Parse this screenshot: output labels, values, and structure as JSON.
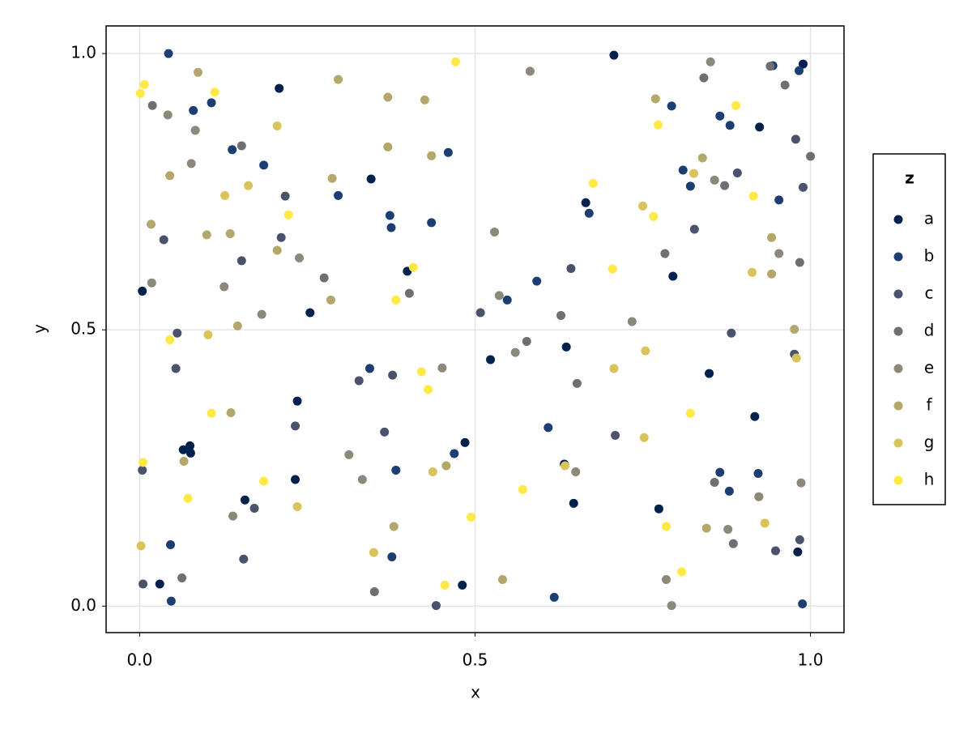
{
  "chart_data": {
    "type": "scatter",
    "x_label": "x",
    "y_label": "y",
    "legend_title": "z",
    "legend": "right",
    "grid": true,
    "xlim": [
      -0.05,
      1.05
    ],
    "ylim": [
      -0.048,
      1.05
    ],
    "xticks": [
      {
        "value": 0,
        "label": "0.0"
      },
      {
        "value": 0.5,
        "label": "0.5"
      },
      {
        "value": 1,
        "label": "1.0"
      }
    ],
    "yticks": [
      {
        "value": 0,
        "label": "0.0"
      },
      {
        "value": 0.5,
        "label": "0.5"
      },
      {
        "value": 1,
        "label": "1.0"
      }
    ],
    "series": [
      {
        "name": "a",
        "color": "#00204d",
        "x": [
          0.707,
          0.989,
          0.208,
          0.924,
          0.345,
          0.665,
          0.004,
          0.399,
          0.795,
          0.254,
          0.523,
          0.636,
          0.849,
          0.235,
          0.917,
          0.485,
          0.065,
          0.075,
          0.076,
          0.232,
          0.157,
          0.647,
          0.774,
          0.981,
          0.03,
          0.481,
          0.633
        ],
        "y": [
          0.997,
          0.981,
          0.937,
          0.867,
          0.773,
          0.73,
          0.57,
          0.606,
          0.597,
          0.531,
          0.446,
          0.469,
          0.421,
          0.371,
          0.343,
          0.296,
          0.283,
          0.29,
          0.277,
          0.229,
          0.192,
          0.186,
          0.176,
          0.098,
          0.04,
          0.038,
          0.257
        ]
      },
      {
        "name": "b",
        "color": "#1c3e73",
        "x": [
          0.043,
          0.944,
          0.983,
          0.08,
          0.107,
          0.793,
          0.865,
          0.88,
          0.138,
          0.46,
          0.185,
          0.296,
          0.81,
          0.821,
          0.953,
          0.67,
          0.373,
          0.375,
          0.435,
          0.592,
          0.548,
          0.343,
          0.609,
          0.469,
          0.382,
          0.865,
          0.922,
          0.879,
          0.046,
          0.376,
          0.047,
          0.618,
          0.988
        ],
        "y": [
          1.0,
          0.978,
          0.969,
          0.897,
          0.911,
          0.905,
          0.887,
          0.87,
          0.826,
          0.821,
          0.798,
          0.743,
          0.789,
          0.76,
          0.735,
          0.711,
          0.707,
          0.685,
          0.694,
          0.588,
          0.554,
          0.43,
          0.323,
          0.276,
          0.246,
          0.242,
          0.24,
          0.208,
          0.111,
          0.089,
          0.009,
          0.016,
          0.004
        ]
      },
      {
        "name": "c",
        "color": "#4b526b",
        "x": [
          0.978,
          0.989,
          0.217,
          0.036,
          0.211,
          0.152,
          0.827,
          0.891,
          0.508,
          0.643,
          0.056,
          0.882,
          0.976,
          0.054,
          0.327,
          0.377,
          0.232,
          0.365,
          0.709,
          0.004,
          0.171,
          0.155,
          0.005,
          0.442,
          0.948,
          0.984
        ],
        "y": [
          0.845,
          0.758,
          0.742,
          0.663,
          0.667,
          0.625,
          0.682,
          0.784,
          0.531,
          0.611,
          0.494,
          0.494,
          0.456,
          0.43,
          0.408,
          0.418,
          0.326,
          0.315,
          0.309,
          0.246,
          0.177,
          0.085,
          0.04,
          0.001,
          0.1,
          0.12
        ]
      },
      {
        "name": "d",
        "color": "#6f6f72",
        "x": [
          0.94,
          0.841,
          0.962,
          0.019,
          0.152,
          1.0,
          0.872,
          0.783,
          0.984,
          0.275,
          0.402,
          0.577,
          0.628,
          0.652,
          0.857,
          0.885,
          0.063,
          0.35
        ],
        "y": [
          0.977,
          0.956,
          0.943,
          0.906,
          0.833,
          0.814,
          0.761,
          0.638,
          0.622,
          0.594,
          0.566,
          0.479,
          0.526,
          0.403,
          0.224,
          0.113,
          0.051,
          0.026
        ]
      },
      {
        "name": "e",
        "color": "#8e887b",
        "x": [
          0.042,
          0.083,
          0.077,
          0.857,
          0.018,
          0.126,
          0.238,
          0.182,
          0.529,
          0.536,
          0.56,
          0.734,
          0.451,
          0.953,
          0.312,
          0.332,
          0.139,
          0.65,
          0.923,
          0.986,
          0.877,
          0.785,
          0.793,
          0.851,
          0.582
        ],
        "y": [
          0.889,
          0.861,
          0.801,
          0.771,
          0.585,
          0.578,
          0.63,
          0.528,
          0.677,
          0.562,
          0.459,
          0.515,
          0.431,
          0.638,
          0.274,
          0.229,
          0.163,
          0.243,
          0.198,
          0.223,
          0.139,
          0.048,
          0.001,
          0.985,
          0.968
        ]
      },
      {
        "name": "f",
        "color": "#b4a76c",
        "x": [
          0.087,
          0.296,
          0.37,
          0.769,
          0.425,
          0.37,
          0.435,
          0.839,
          0.287,
          0.045,
          0.017,
          0.1,
          0.135,
          0.205,
          0.942,
          0.285,
          0.942,
          0.146,
          0.976,
          0.136,
          0.457,
          0.066,
          0.379,
          0.845,
          0.541
        ],
        "y": [
          0.966,
          0.953,
          0.921,
          0.918,
          0.916,
          0.831,
          0.815,
          0.811,
          0.774,
          0.779,
          0.691,
          0.672,
          0.674,
          0.644,
          0.667,
          0.554,
          0.601,
          0.507,
          0.501,
          0.35,
          0.254,
          0.262,
          0.144,
          0.141,
          0.048
        ]
      },
      {
        "name": "g",
        "color": "#d8c45b",
        "x": [
          0.205,
          0.127,
          0.162,
          0.75,
          0.102,
          0.979,
          0.752,
          0.437,
          0.634,
          0.235,
          0.002,
          0.349,
          0.932,
          0.707,
          0.754,
          0.913,
          0.826
        ],
        "y": [
          0.869,
          0.743,
          0.761,
          0.724,
          0.491,
          0.449,
          0.305,
          0.243,
          0.254,
          0.18,
          0.109,
          0.097,
          0.15,
          0.43,
          0.462,
          0.604,
          0.783
        ]
      },
      {
        "name": "h",
        "color": "#ffe945",
        "x": [
          0.471,
          0.001,
          0.007,
          0.112,
          0.889,
          0.773,
          0.676,
          0.915,
          0.766,
          0.222,
          0.408,
          0.705,
          0.382,
          0.045,
          0.42,
          0.43,
          0.107,
          0.821,
          0.005,
          0.185,
          0.571,
          0.072,
          0.494,
          0.785,
          0.808,
          0.455
        ],
        "y": [
          0.985,
          0.928,
          0.944,
          0.93,
          0.906,
          0.871,
          0.765,
          0.742,
          0.705,
          0.708,
          0.613,
          0.61,
          0.554,
          0.482,
          0.424,
          0.392,
          0.349,
          0.349,
          0.26,
          0.226,
          0.211,
          0.195,
          0.161,
          0.144,
          0.062,
          0.038
        ]
      }
    ]
  }
}
